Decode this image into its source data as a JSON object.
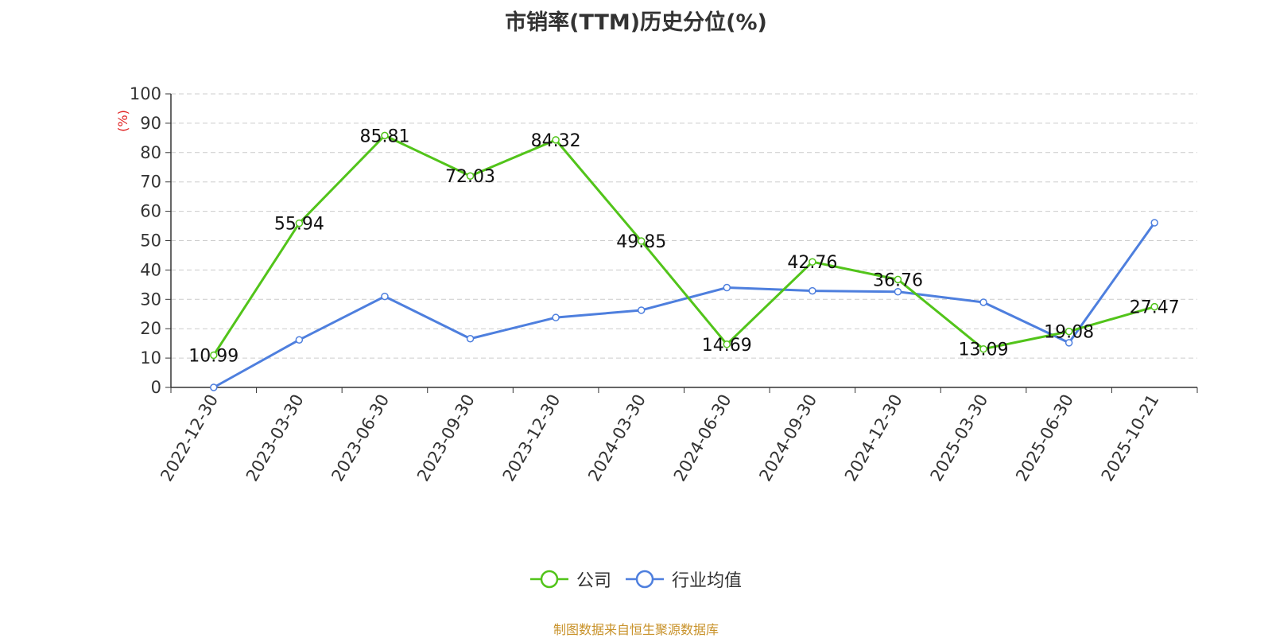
{
  "chart_data": {
    "type": "line",
    "title": "市销率(TTM)历史分位(%)",
    "ylabel": "(%)",
    "xlabel": "",
    "ylim": [
      0,
      100
    ],
    "yticks": [
      0,
      10,
      20,
      30,
      40,
      50,
      60,
      70,
      80,
      90,
      100
    ],
    "categories": [
      "2022-12-30",
      "2023-03-30",
      "2023-06-30",
      "2023-09-30",
      "2023-12-30",
      "2024-03-30",
      "2024-06-30",
      "2024-09-30",
      "2024-12-30",
      "2025-03-30",
      "2025-06-30",
      "2025-10-21"
    ],
    "grid": true,
    "legend_position": "bottom",
    "series": [
      {
        "name": "公司",
        "color": "#52c41a",
        "show_labels": true,
        "values": [
          10.99,
          55.94,
          85.81,
          72.03,
          84.32,
          49.85,
          14.69,
          42.76,
          36.76,
          13.09,
          19.08,
          27.47
        ]
      },
      {
        "name": "行业均值",
        "color": "#4e7fde",
        "show_labels": false,
        "values": [
          0,
          16.2,
          31.0,
          16.6,
          23.8,
          26.3,
          34.0,
          32.9,
          32.6,
          29.0,
          15.2,
          56.1
        ]
      }
    ]
  },
  "source_note": "制图数据来自恒生聚源数据库",
  "colors": {
    "ylabel": "#e02020",
    "source_note": "#c8922a",
    "grid": "#cccccc",
    "axis": "#333333"
  }
}
